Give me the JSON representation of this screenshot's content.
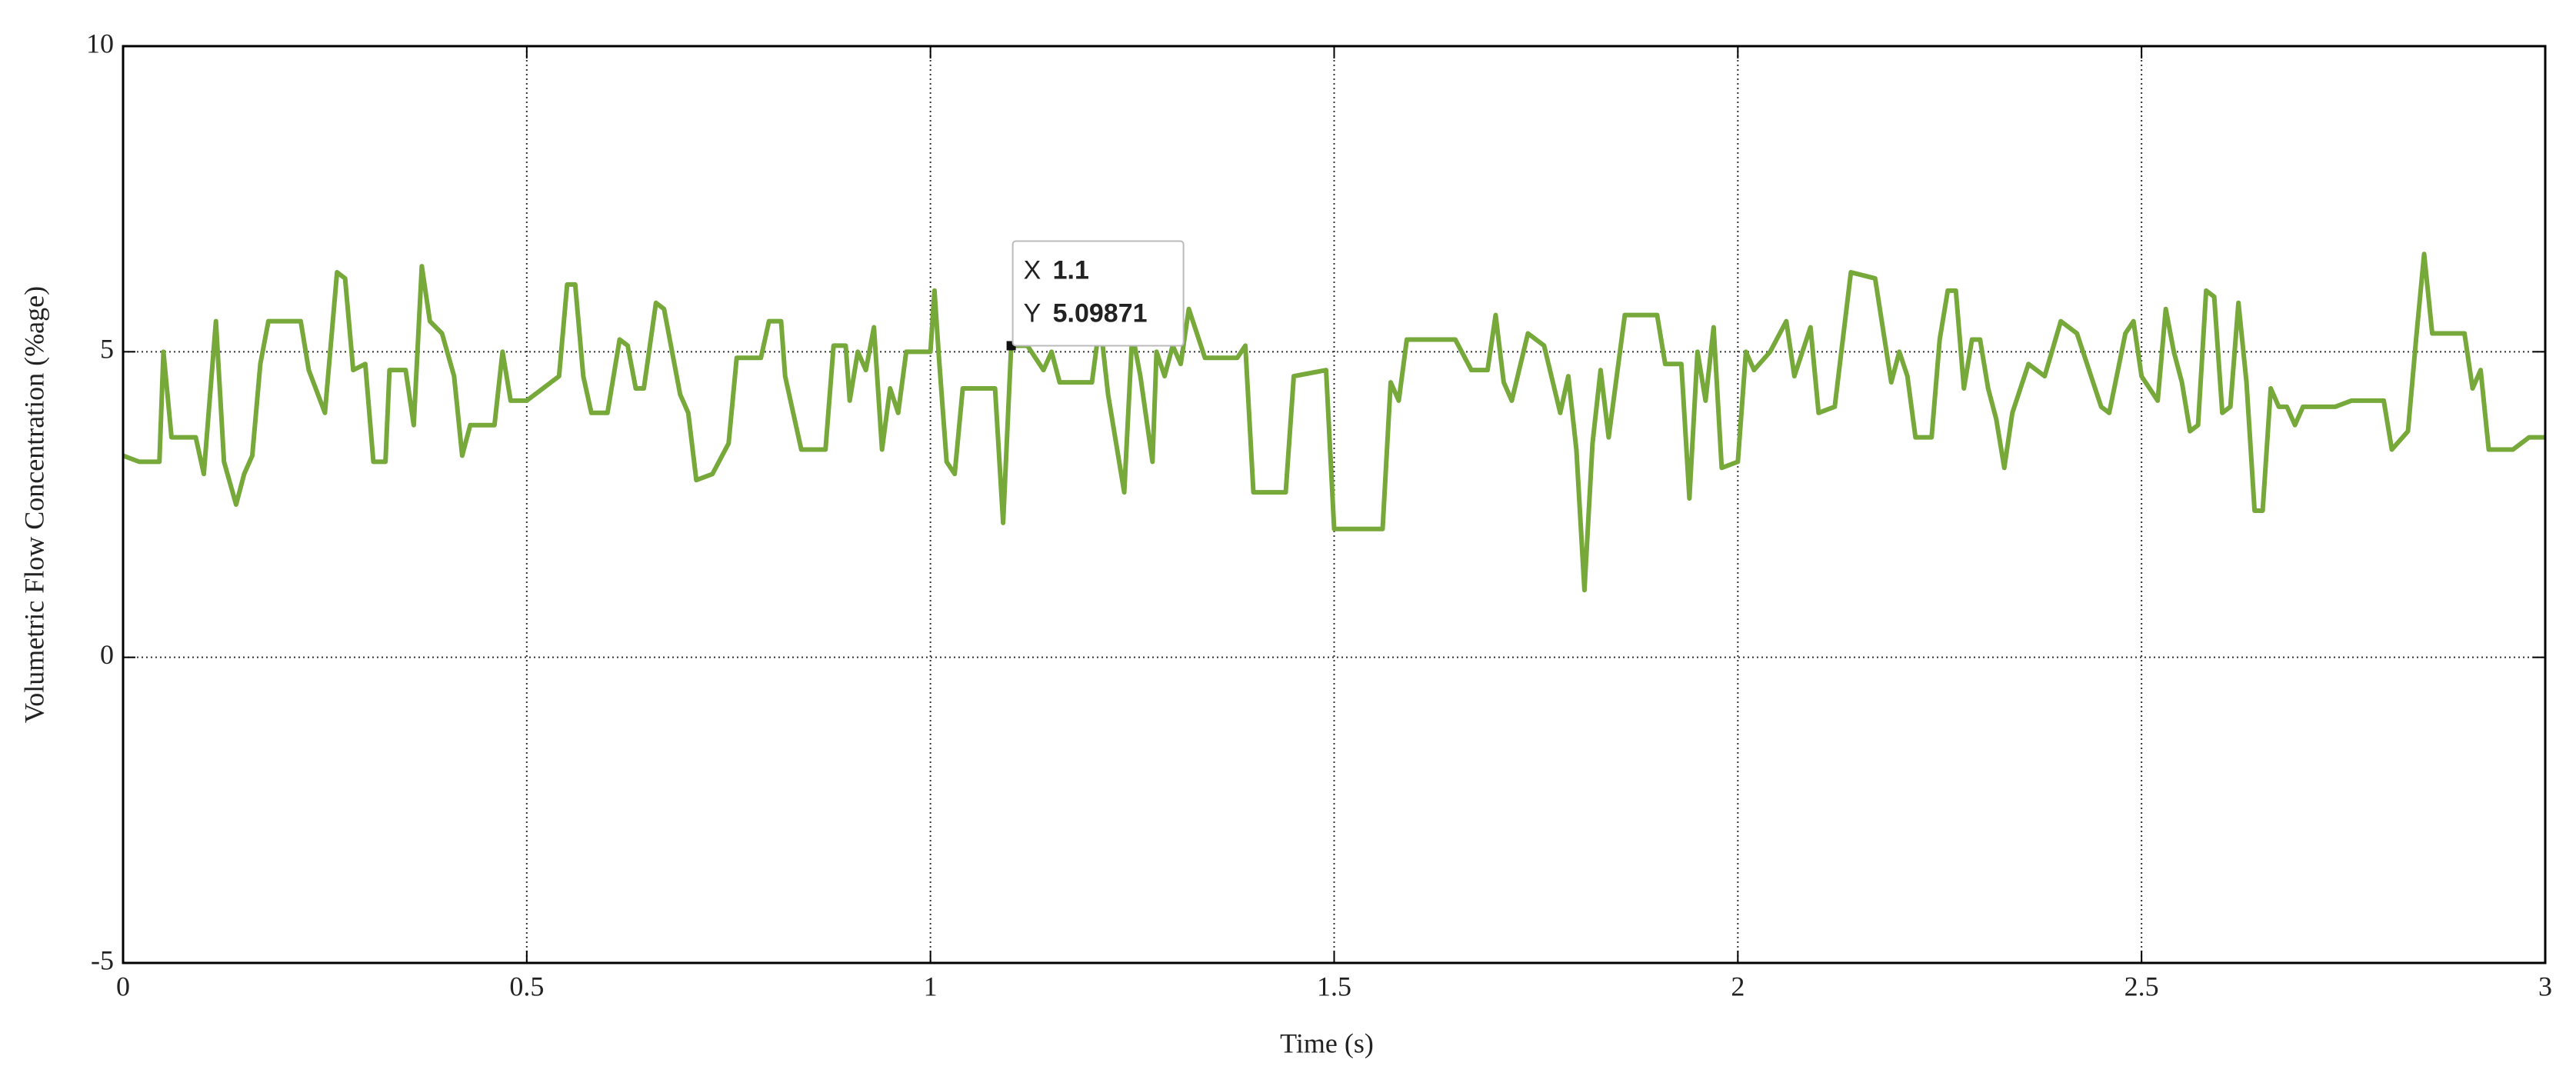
{
  "chart_data": {
    "type": "line",
    "xlabel": "Time (s)",
    "ylabel": "Volumetric Flow Concentration (%age)",
    "xlim": [
      0,
      3
    ],
    "ylim": [
      -5,
      10
    ],
    "xticks": [
      0,
      0.5,
      1,
      1.5,
      2,
      2.5,
      3
    ],
    "yticks": [
      -5,
      0,
      5,
      10
    ],
    "grid": true,
    "color": "#76a83a",
    "x": [
      0,
      0.02,
      0.045,
      0.05,
      0.06,
      0.09,
      0.1,
      0.115,
      0.125,
      0.14,
      0.15,
      0.16,
      0.17,
      0.18,
      0.22,
      0.23,
      0.25,
      0.265,
      0.275,
      0.285,
      0.3,
      0.31,
      0.325,
      0.33,
      0.35,
      0.36,
      0.37,
      0.38,
      0.395,
      0.41,
      0.42,
      0.43,
      0.46,
      0.47,
      0.48,
      0.5,
      0.52,
      0.54,
      0.55,
      0.56,
      0.57,
      0.58,
      0.6,
      0.615,
      0.625,
      0.635,
      0.645,
      0.66,
      0.67,
      0.69,
      0.7,
      0.71,
      0.73,
      0.75,
      0.76,
      0.79,
      0.8,
      0.815,
      0.82,
      0.83,
      0.84,
      0.87,
      0.88,
      0.895,
      0.9,
      0.91,
      0.92,
      0.93,
      0.94,
      0.95,
      0.96,
      0.97,
      1.0,
      1.005,
      1.01,
      1.02,
      1.03,
      1.04,
      1.08,
      1.09,
      1.1,
      1.12,
      1.14,
      1.15,
      1.16,
      1.2,
      1.21,
      1.22,
      1.24,
      1.25,
      1.26,
      1.275,
      1.28,
      1.29,
      1.3,
      1.31,
      1.32,
      1.34,
      1.38,
      1.39,
      1.4,
      1.44,
      1.45,
      1.49,
      1.5,
      1.56,
      1.57,
      1.58,
      1.59,
      1.65,
      1.67,
      1.69,
      1.7,
      1.71,
      1.72,
      1.74,
      1.76,
      1.78,
      1.79,
      1.8,
      1.81,
      1.82,
      1.83,
      1.84,
      1.86,
      1.9,
      1.91,
      1.93,
      1.94,
      1.95,
      1.96,
      1.97,
      1.98,
      2.0,
      2.01,
      2.02,
      2.04,
      2.06,
      2.07,
      2.09,
      2.1,
      2.12,
      2.14,
      2.17,
      2.19,
      2.2,
      2.21,
      2.22,
      2.24,
      2.25,
      2.26,
      2.27,
      2.28,
      2.29,
      2.3,
      2.31,
      2.32,
      2.33,
      2.34,
      2.36,
      2.38,
      2.4,
      2.42,
      2.45,
      2.46,
      2.48,
      2.49,
      2.5,
      2.52,
      2.53,
      2.54,
      2.55,
      2.56,
      2.57,
      2.58,
      2.59,
      2.6,
      2.61,
      2.62,
      2.63,
      2.64,
      2.65,
      2.66,
      2.67,
      2.68,
      2.69,
      2.7,
      2.74,
      2.76,
      2.8,
      2.81,
      2.83,
      2.84,
      2.85,
      2.86,
      2.9,
      2.91,
      2.92,
      2.93,
      2.96,
      2.98,
      3.0
    ],
    "values": [
      3.3,
      3.2,
      3.2,
      5.0,
      3.6,
      3.6,
      3.0,
      5.5,
      3.2,
      2.5,
      3.0,
      3.3,
      4.8,
      5.5,
      5.5,
      4.7,
      4.0,
      6.3,
      6.2,
      4.7,
      4.8,
      3.2,
      3.2,
      4.7,
      4.7,
      3.8,
      6.4,
      5.5,
      5.3,
      4.6,
      3.3,
      3.8,
      3.8,
      5.0,
      4.2,
      4.2,
      4.4,
      4.6,
      6.1,
      6.1,
      4.6,
      4.0,
      4.0,
      5.2,
      5.1,
      4.4,
      4.4,
      5.8,
      5.7,
      4.3,
      4.0,
      2.9,
      3.0,
      3.5,
      4.9,
      4.9,
      5.5,
      5.5,
      4.6,
      4.0,
      3.4,
      3.4,
      5.1,
      5.1,
      4.2,
      5.0,
      4.7,
      5.4,
      3.4,
      4.4,
      4.0,
      5.0,
      5.0,
      6.0,
      5.0,
      3.2,
      3.0,
      4.4,
      4.4,
      2.2,
      5.09871,
      5.1,
      4.7,
      5.0,
      4.5,
      4.5,
      5.5,
      4.3,
      2.7,
      5.3,
      4.6,
      3.2,
      5.0,
      4.6,
      5.1,
      4.8,
      5.7,
      4.9,
      4.9,
      5.1,
      2.7,
      2.7,
      4.6,
      4.7,
      2.1,
      2.1,
      4.5,
      4.2,
      5.2,
      5.2,
      4.7,
      4.7,
      5.6,
      4.5,
      4.2,
      5.3,
      5.1,
      4.0,
      4.6,
      3.4,
      1.1,
      3.5,
      4.7,
      3.6,
      5.6,
      5.6,
      4.8,
      4.8,
      2.6,
      5.0,
      4.2,
      5.4,
      3.1,
      3.2,
      5.0,
      4.7,
      5.0,
      5.5,
      4.6,
      5.4,
      4.0,
      4.1,
      6.3,
      6.2,
      4.5,
      5.0,
      4.6,
      3.6,
      3.6,
      5.2,
      6.0,
      6.0,
      4.4,
      5.2,
      5.2,
      4.4,
      3.9,
      3.1,
      4.0,
      4.8,
      4.6,
      5.5,
      5.3,
      4.1,
      4.0,
      5.3,
      5.5,
      4.6,
      4.2,
      5.7,
      5.0,
      4.5,
      3.7,
      3.8,
      6.0,
      5.9,
      4.0,
      4.1,
      5.8,
      4.5,
      2.4,
      2.4,
      4.4,
      4.1,
      4.1,
      3.8,
      4.1,
      4.1,
      4.2,
      4.2,
      3.4,
      3.7,
      5.2,
      6.6,
      5.3,
      5.3,
      4.4,
      4.7,
      3.4,
      3.4,
      3.6,
      3.6
    ],
    "datatip": {
      "x_name": "X",
      "x": 1.1,
      "y_name": "Y",
      "y": 5.09871
    }
  }
}
